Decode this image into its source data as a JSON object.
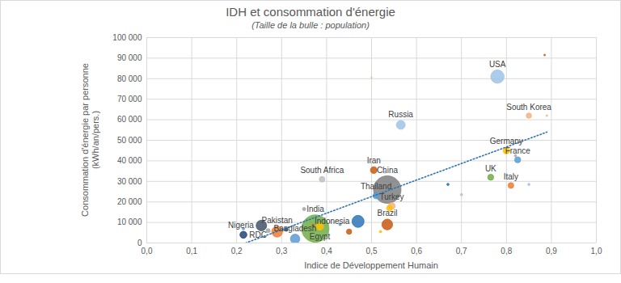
{
  "chart_data": {
    "type": "bubble",
    "title": "IDH et consommation d'énergie",
    "subtitle": "(Taille de la bulle : population)",
    "x_label": "Indice de Développement Humain",
    "y_label": "Consommation d'énergie par personne\n(kWh/an/pers.)",
    "xlim": [
      0,
      1
    ],
    "ylim": [
      0,
      100000
    ],
    "xticks": [
      {
        "value": 0,
        "label": "0,0"
      },
      {
        "value": 0.1,
        "label": "0,1"
      },
      {
        "value": 0.2,
        "label": "0,2"
      },
      {
        "value": 0.3,
        "label": "0,3"
      },
      {
        "value": 0.4,
        "label": "0,4"
      },
      {
        "value": 0.5,
        "label": "0,5"
      },
      {
        "value": 0.6,
        "label": "0,6"
      },
      {
        "value": 0.7,
        "label": "0,7"
      },
      {
        "value": 0.8,
        "label": "0,8"
      },
      {
        "value": 0.9,
        "label": "0,9"
      },
      {
        "value": 1,
        "label": "1,0"
      }
    ],
    "yticks": [
      0,
      {
        "value": 10000,
        "label": "10 000"
      },
      {
        "value": 20000,
        "label": "20 000"
      },
      {
        "value": 30000,
        "label": "30 000"
      },
      {
        "value": 40000,
        "label": "40 000"
      },
      {
        "value": 50000,
        "label": "50 000"
      },
      {
        "value": 60000,
        "label": "60 000"
      },
      {
        "value": 70000,
        "label": "70 000"
      },
      {
        "value": 80000,
        "label": "80 000"
      },
      {
        "value": 90000,
        "label": "90 000"
      },
      {
        "value": 100000,
        "label": "100 000"
      }
    ],
    "grid": true,
    "x": [
      0.535,
      0.375,
      0.78,
      0.85,
      0.565,
      0.8,
      0.825,
      0.765,
      0.81,
      0.505,
      0.39,
      0.51,
      0.545,
      0.535,
      0.47,
      0.385,
      0.29,
      0.255,
      0.33,
      0.215,
      0.885,
      0.5,
      0.89,
      0.82,
      0.67,
      0.7,
      0.85,
      0.35,
      0.45,
      0.54,
      0.52,
      0.43,
      0.27,
      0.31,
      0.215,
      0.37,
      0.53
    ],
    "values": [
      26000,
      7000,
      81000,
      62000,
      57500,
      45000,
      40500,
      32000,
      28000,
      35500,
      31000,
      23000,
      18000,
      9000,
      10500,
      8000,
      5500,
      8500,
      2000,
      4000,
      91500,
      80500,
      62000,
      42500,
      28500,
      23500,
      28500,
      16500,
      5500,
      17000,
      5500,
      9000,
      6000,
      6500,
      7000,
      8500,
      34500
    ],
    "sizes": [
      1400,
      1380,
      331,
      52,
      145,
      83,
      67,
      67,
      60,
      84,
      59,
      70,
      84,
      212,
      270,
      100,
      220,
      206,
      165,
      90,
      5,
      3,
      5,
      9,
      10,
      10,
      9,
      20,
      50,
      60,
      10,
      10,
      30,
      20,
      10,
      10,
      10
    ],
    "labels": [
      "China",
      "India",
      "USA",
      "South Korea",
      "Russia",
      "Germany",
      "France",
      "UK",
      "Italy",
      "Iran",
      "South Africa",
      "Thailand",
      "Turkey",
      "Brazil",
      "Indonesia",
      "Egypt",
      "Pakistan",
      "Nigeria",
      "Bangladesh",
      "RDC",
      null,
      null,
      null,
      null,
      null,
      null,
      null,
      null,
      null,
      null,
      null,
      null,
      null,
      null,
      null,
      null,
      null
    ],
    "colors": [
      "#7f7f7f",
      "#70ad47",
      "#9dc3e6",
      "#f4b183",
      "#9dc3e6",
      "#ffc000",
      "#5b9bd5",
      "#70ad47",
      "#ed7d31",
      "#c55a11",
      "#bfbfbf",
      "#5b9bd5",
      "#f4b183",
      "#c55a11",
      "#2e75b6",
      "#ffc000",
      "#ed7d31",
      "#44546a",
      "#5b9bd5",
      "#264478",
      "#c55a11",
      "#f4b183",
      "#f4b183",
      "#a5a5a5",
      "#2e75b6",
      "#bfbfbf",
      "#9dc3e6",
      "#a5a5a5",
      "#c55a11",
      "#ffc000",
      "#ffc000",
      "#5b9bd5",
      "#a5a5a5",
      "#264478",
      "#5b9bd5",
      "#c55a11",
      "#c9c9c9"
    ],
    "trend": {
      "x": [
        0.22,
        0.89
      ],
      "values": [
        0,
        54000
      ],
      "color": "#2e75b6",
      "line_style": "dotted"
    }
  }
}
